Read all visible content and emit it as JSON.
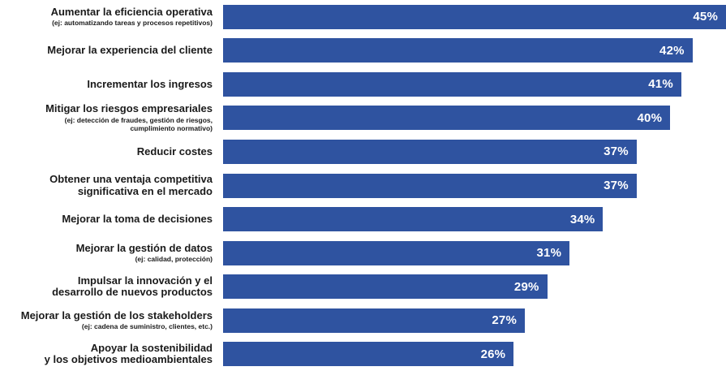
{
  "chart_data": {
    "type": "bar",
    "orientation": "horizontal",
    "title": "",
    "xlabel": "",
    "ylabel": "",
    "xlim": [
      0,
      45
    ],
    "grid": false,
    "legend": false,
    "bar_color": "#2F53A0",
    "value_label_color": "#FFFFFF",
    "label_color": "#1A1A1A",
    "background_color": "#FFFFFF",
    "categories": [
      "Aumentar la eficiencia operativa",
      "Mejorar la experiencia del cliente",
      "Incrementar los ingresos",
      "Mitigar los riesgos empresariales",
      "Reducir costes",
      "Obtener una ventaja competitiva significativa en el mercado",
      "Mejorar la toma de decisiones",
      "Mejorar la gestión de datos",
      "Impulsar la innovación y el desarrollo de nuevos productos",
      "Mejorar la gestión de los stakeholders",
      "Apoyar la sostenibilidad y los objetivos medioambientales"
    ],
    "values": [
      45,
      42,
      41,
      40,
      37,
      37,
      34,
      31,
      29,
      27,
      26
    ],
    "rows": [
      {
        "title": "Aumentar la eficiencia operativa",
        "subtitle": "(ej: automatizando tareas y procesos repetitivos)",
        "value": 45,
        "value_label": "45%"
      },
      {
        "title": "Mejorar la experiencia del cliente",
        "subtitle": "",
        "value": 42,
        "value_label": "42%"
      },
      {
        "title": "Incrementar los ingresos",
        "subtitle": "",
        "value": 41,
        "value_label": "41%"
      },
      {
        "title": "Mitigar los riesgos empresariales",
        "subtitle": "(ej: detección de fraudes, gestión de riesgos,\ncumplimiento normativo)",
        "value": 40,
        "value_label": "40%"
      },
      {
        "title": "Reducir costes",
        "subtitle": "",
        "value": 37,
        "value_label": "37%"
      },
      {
        "title": "Obtener una ventaja competitiva\nsignificativa en el mercado",
        "subtitle": "",
        "value": 37,
        "value_label": "37%"
      },
      {
        "title": "Mejorar la toma de decisiones",
        "subtitle": "",
        "value": 34,
        "value_label": "34%"
      },
      {
        "title": "Mejorar la gestión de datos",
        "subtitle": "(ej: calidad, protección)",
        "value": 31,
        "value_label": "31%"
      },
      {
        "title": "Impulsar la innovación y el\ndesarrollo de nuevos productos",
        "subtitle": "",
        "value": 29,
        "value_label": "29%"
      },
      {
        "title": "Mejorar la gestión de los stakeholders",
        "subtitle": "(ej: cadena de suministro, clientes, etc.)",
        "value": 27,
        "value_label": "27%"
      },
      {
        "title": "Apoyar la sostenibilidad\ny los objetivos medioambientales",
        "subtitle": "",
        "value": 26,
        "value_label": "26%"
      }
    ]
  }
}
